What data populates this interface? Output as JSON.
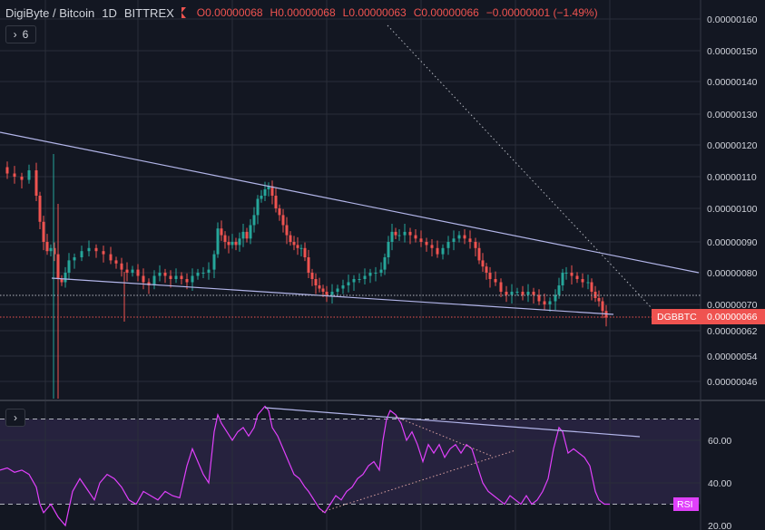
{
  "header": {
    "symbol": "DigiByte / Bitcoin",
    "interval": "1D",
    "exchange": "BITTREX",
    "o_label": "O",
    "o_value": "0.00000068",
    "h_label": "H",
    "h_value": "0.00000068",
    "l_label": "L",
    "l_value": "0.00000063",
    "c_label": "C",
    "c_value": "0.00000066",
    "change": "−0.00000001 (−1.49%)"
  },
  "controls": {
    "collapse_label": "6",
    "expand_symbol": "›",
    "collapse_symbol": "›"
  },
  "colors": {
    "background": "#131722",
    "up": "#26a69a",
    "down": "#ef5350",
    "trendline": "#b2b5e9",
    "rsi": "#e040fb",
    "grid": "#2a2e39"
  },
  "chart_data": [
    {
      "type": "candlestick",
      "ylabel": "",
      "ylim": [
        4.2e-07,
        1.63e-06
      ],
      "yticks": [
        "0.00000160",
        "0.00000150",
        "0.00000140",
        "0.00000130",
        "0.00000120",
        "0.00000110",
        "0.00000100",
        "0.00000090",
        "0.00000080",
        "0.00000070",
        "0.00000062",
        "0.00000054",
        "0.00000046"
      ],
      "ytick_values": [
        1.6e-06,
        1.5e-06,
        1.4e-06,
        1.3e-06,
        1.2e-06,
        1.1e-06,
        1e-06,
        9e-07,
        8e-07,
        7e-07,
        6.2e-07,
        5.4e-07,
        4.6e-07
      ],
      "last_price_label": "DGBBTC",
      "last_price": "0.00000066",
      "close_path": [
        [
          0,
          113
        ],
        [
          8,
          111
        ],
        [
          16,
          110
        ],
        [
          24,
          109
        ],
        [
          32,
          112
        ],
        [
          40,
          104
        ],
        [
          44,
          96
        ],
        [
          48,
          90
        ],
        [
          52,
          87
        ],
        [
          56,
          88
        ],
        [
          60,
          86
        ],
        [
          64,
          78
        ],
        [
          68,
          77
        ],
        [
          72,
          80
        ],
        [
          76,
          84
        ],
        [
          82,
          85
        ],
        [
          90,
          87
        ],
        [
          98,
          88
        ],
        [
          106,
          87
        ],
        [
          114,
          86
        ],
        [
          122,
          84
        ],
        [
          128,
          83
        ],
        [
          134,
          81
        ],
        [
          140,
          80
        ],
        [
          146,
          81
        ],
        [
          152,
          79
        ],
        [
          158,
          77
        ],
        [
          164,
          76
        ],
        [
          170,
          79
        ],
        [
          176,
          80
        ],
        [
          182,
          79
        ],
        [
          188,
          78
        ],
        [
          194,
          79
        ],
        [
          200,
          78
        ],
        [
          206,
          77
        ],
        [
          212,
          79
        ],
        [
          218,
          80
        ],
        [
          224,
          80
        ],
        [
          230,
          81
        ],
        [
          236,
          86
        ],
        [
          240,
          94
        ],
        [
          244,
          92
        ],
        [
          248,
          90
        ],
        [
          252,
          89
        ],
        [
          256,
          90
        ],
        [
          260,
          89
        ],
        [
          264,
          91
        ],
        [
          268,
          93
        ],
        [
          272,
          91
        ],
        [
          276,
          95
        ],
        [
          280,
          98
        ],
        [
          284,
          103
        ],
        [
          288,
          104
        ],
        [
          292,
          106
        ],
        [
          296,
          107
        ],
        [
          300,
          104
        ],
        [
          304,
          100
        ],
        [
          308,
          98
        ],
        [
          312,
          95
        ],
        [
          316,
          92
        ],
        [
          320,
          90
        ],
        [
          324,
          89
        ],
        [
          328,
          88
        ],
        [
          332,
          88
        ],
        [
          336,
          85
        ],
        [
          340,
          80
        ],
        [
          344,
          78
        ],
        [
          348,
          76
        ],
        [
          352,
          75
        ],
        [
          356,
          74
        ],
        [
          360,
          73
        ],
        [
          366,
          74
        ],
        [
          372,
          75
        ],
        [
          378,
          76
        ],
        [
          384,
          77
        ],
        [
          390,
          78
        ],
        [
          396,
          78
        ],
        [
          402,
          79
        ],
        [
          408,
          80
        ],
        [
          414,
          80
        ],
        [
          420,
          81
        ],
        [
          424,
          85
        ],
        [
          428,
          90
        ],
        [
          432,
          93
        ],
        [
          436,
          92
        ],
        [
          440,
          92
        ],
        [
          446,
          93
        ],
        [
          452,
          92
        ],
        [
          458,
          91
        ],
        [
          464,
          90
        ],
        [
          470,
          89
        ],
        [
          476,
          88
        ],
        [
          482,
          86
        ],
        [
          488,
          88
        ],
        [
          494,
          90
        ],
        [
          500,
          91
        ],
        [
          506,
          92
        ],
        [
          512,
          91
        ],
        [
          518,
          90
        ],
        [
          524,
          88
        ],
        [
          528,
          84
        ],
        [
          532,
          82
        ],
        [
          536,
          80
        ],
        [
          540,
          78
        ],
        [
          546,
          77
        ],
        [
          552,
          74
        ],
        [
          558,
          73
        ],
        [
          564,
          74
        ],
        [
          570,
          74
        ],
        [
          576,
          73
        ],
        [
          582,
          74
        ],
        [
          588,
          73
        ],
        [
          594,
          71
        ],
        [
          600,
          70
        ],
        [
          606,
          71
        ],
        [
          612,
          73
        ],
        [
          616,
          76
        ],
        [
          620,
          80
        ],
        [
          624,
          80
        ],
        [
          630,
          79
        ],
        [
          636,
          78
        ],
        [
          642,
          77
        ],
        [
          648,
          77
        ],
        [
          652,
          74
        ],
        [
          656,
          72
        ],
        [
          660,
          71
        ],
        [
          664,
          68
        ],
        [
          668,
          66
        ]
      ],
      "shape_note": "close series in data units ×1e-8 BTC; x is bar index position"
    },
    {
      "type": "line",
      "series": [
        {
          "name": "RSI"
        }
      ],
      "ylim": [
        20,
        80
      ],
      "yticks": [
        "60.00",
        "40.00",
        "20.00"
      ],
      "ytick_values": [
        60,
        40,
        20
      ],
      "bands": [
        30,
        70
      ],
      "path": [
        [
          0,
          46
        ],
        [
          8,
          47
        ],
        [
          16,
          45
        ],
        [
          24,
          46
        ],
        [
          32,
          44
        ],
        [
          40,
          38
        ],
        [
          44,
          30
        ],
        [
          48,
          26
        ],
        [
          56,
          30
        ],
        [
          64,
          24
        ],
        [
          72,
          20
        ],
        [
          80,
          36
        ],
        [
          88,
          42
        ],
        [
          96,
          37
        ],
        [
          104,
          32
        ],
        [
          110,
          40
        ],
        [
          118,
          44
        ],
        [
          126,
          42
        ],
        [
          134,
          38
        ],
        [
          142,
          32
        ],
        [
          150,
          30
        ],
        [
          158,
          36
        ],
        [
          166,
          34
        ],
        [
          174,
          32
        ],
        [
          182,
          36
        ],
        [
          190,
          34
        ],
        [
          198,
          33
        ],
        [
          206,
          48
        ],
        [
          212,
          56
        ],
        [
          218,
          50
        ],
        [
          224,
          44
        ],
        [
          230,
          40
        ],
        [
          236,
          64
        ],
        [
          240,
          72
        ],
        [
          244,
          68
        ],
        [
          250,
          64
        ],
        [
          256,
          60
        ],
        [
          262,
          64
        ],
        [
          268,
          66
        ],
        [
          274,
          62
        ],
        [
          280,
          66
        ],
        [
          284,
          72
        ],
        [
          288,
          74
        ],
        [
          292,
          76
        ],
        [
          296,
          74
        ],
        [
          300,
          66
        ],
        [
          306,
          62
        ],
        [
          312,
          56
        ],
        [
          318,
          50
        ],
        [
          324,
          44
        ],
        [
          330,
          42
        ],
        [
          336,
          38
        ],
        [
          340,
          36
        ],
        [
          346,
          32
        ],
        [
          352,
          28
        ],
        [
          358,
          26
        ],
        [
          364,
          30
        ],
        [
          370,
          34
        ],
        [
          376,
          32
        ],
        [
          382,
          36
        ],
        [
          388,
          38
        ],
        [
          394,
          42
        ],
        [
          400,
          44
        ],
        [
          406,
          48
        ],
        [
          412,
          50
        ],
        [
          418,
          46
        ],
        [
          422,
          60
        ],
        [
          426,
          70
        ],
        [
          430,
          74
        ],
        [
          436,
          72
        ],
        [
          442,
          68
        ],
        [
          448,
          60
        ],
        [
          454,
          64
        ],
        [
          460,
          58
        ],
        [
          466,
          50
        ],
        [
          472,
          58
        ],
        [
          478,
          54
        ],
        [
          484,
          58
        ],
        [
          490,
          52
        ],
        [
          496,
          56
        ],
        [
          502,
          58
        ],
        [
          508,
          54
        ],
        [
          514,
          58
        ],
        [
          520,
          56
        ],
        [
          526,
          48
        ],
        [
          532,
          40
        ],
        [
          538,
          36
        ],
        [
          544,
          34
        ],
        [
          550,
          32
        ],
        [
          556,
          30
        ],
        [
          562,
          34
        ],
        [
          568,
          32
        ],
        [
          574,
          30
        ],
        [
          580,
          34
        ],
        [
          586,
          30
        ],
        [
          592,
          32
        ],
        [
          598,
          36
        ],
        [
          604,
          42
        ],
        [
          610,
          56
        ],
        [
          616,
          66
        ],
        [
          620,
          64
        ],
        [
          626,
          54
        ],
        [
          632,
          56
        ],
        [
          638,
          54
        ],
        [
          644,
          52
        ],
        [
          650,
          48
        ],
        [
          656,
          36
        ],
        [
          660,
          32
        ],
        [
          666,
          30
        ],
        [
          672,
          30
        ]
      ],
      "label": "RSI"
    }
  ]
}
